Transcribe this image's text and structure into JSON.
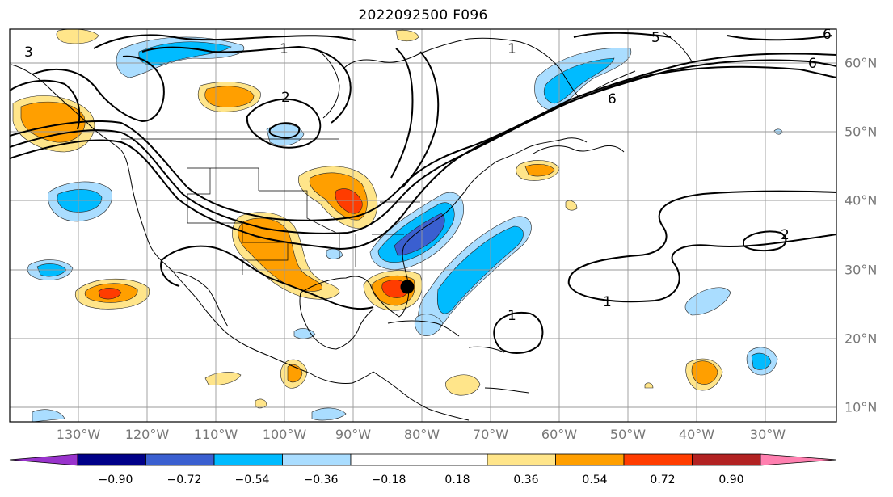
{
  "title": "2022092500 F096",
  "lon_labels": [
    "130°W",
    "120°W",
    "110°W",
    "100°W",
    "90°W",
    "80°W",
    "70°W",
    "60°W",
    "50°W",
    "40°W",
    "30°W"
  ],
  "lat_labels": [
    "60°N",
    "50°N",
    "40°N",
    "30°N",
    "20°N",
    "10°N"
  ],
  "colorbar": {
    "labels": [
      "−0.90",
      "−0.72",
      "−0.54",
      "−0.36",
      "−0.18",
      "0.18",
      "0.36",
      "0.54",
      "0.72",
      "0.90"
    ],
    "colors": [
      "#9933cc",
      "#000088",
      "#3a5fd0",
      "#00bbff",
      "#aaddff",
      "#ffffff",
      "#ffe58a",
      "#ff9f00",
      "#ff3c00",
      "#b22222",
      "#ff80b0"
    ]
  },
  "contour_labels": [
    "1",
    "2",
    "3",
    "5",
    "6",
    "6",
    "6",
    "1",
    "1",
    "1",
    "2"
  ],
  "marker": "storm-center-dot"
}
